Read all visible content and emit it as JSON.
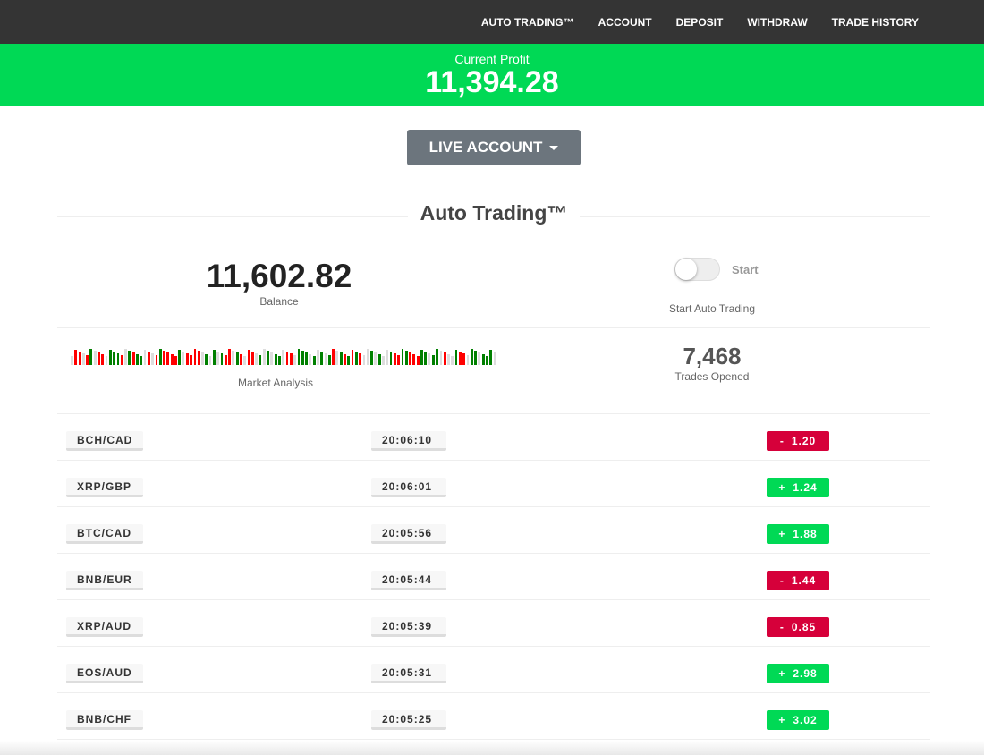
{
  "nav": {
    "items": [
      "AUTO TRADING™",
      "ACCOUNT",
      "DEPOSIT",
      "WITHDRAW",
      "TRADE HISTORY"
    ]
  },
  "profit": {
    "label": "Current Profit",
    "value": "11,394.28"
  },
  "account_button": "LIVE ACCOUNT",
  "section_title": "Auto Trading™",
  "balance": {
    "value": "11,602.82",
    "label": "Balance"
  },
  "toggle": {
    "state": "off",
    "label": "Start",
    "caption": "Start Auto Trading"
  },
  "market": {
    "label": "Market Analysis",
    "bars": "xrrxrgxrrxgggrxgrggxrxrgrrrrgxrrrrxgxgxgrrxgrxrrxgxgxggxrrxgggxgxgxgrxgrgrgrxxgxgxxgrrggrrrggxggxrxxgrrxggxgggx",
    "colors": {
      "r": "#ff0000",
      "g": "#008000",
      "x": "#dddddd"
    }
  },
  "trades": {
    "value": "7,468",
    "label": "Trades Opened"
  },
  "colors": {
    "positive": "#00d955",
    "negative": "#d6003a"
  },
  "rows": [
    {
      "pair": "BCH/CAD",
      "time": "20:06:10",
      "sign": "-",
      "amount": "1.20"
    },
    {
      "pair": "XRP/GBP",
      "time": "20:06:01",
      "sign": "+",
      "amount": "1.24"
    },
    {
      "pair": "BTC/CAD",
      "time": "20:05:56",
      "sign": "+",
      "amount": "1.88"
    },
    {
      "pair": "BNB/EUR",
      "time": "20:05:44",
      "sign": "-",
      "amount": "1.44"
    },
    {
      "pair": "XRP/AUD",
      "time": "20:05:39",
      "sign": "-",
      "amount": "0.85"
    },
    {
      "pair": "EOS/AUD",
      "time": "20:05:31",
      "sign": "+",
      "amount": "2.98"
    },
    {
      "pair": "BNB/CHF",
      "time": "20:05:25",
      "sign": "+",
      "amount": "3.02"
    }
  ]
}
